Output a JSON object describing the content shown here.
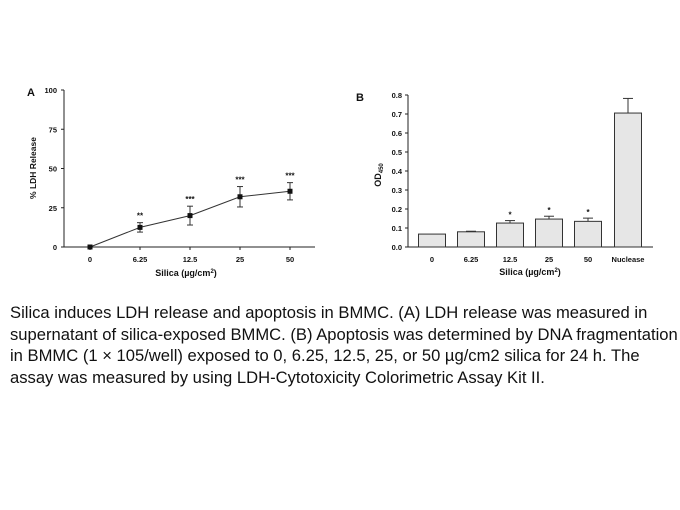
{
  "chart_data": [
    {
      "panel": "A",
      "type": "line",
      "xlabel": "Silica (µg/cm²)",
      "ylabel": "% LDH Release",
      "categories": [
        "0",
        "6.25",
        "12.5",
        "25",
        "50"
      ],
      "values": [
        0,
        12.5,
        20,
        32,
        35.5
      ],
      "errors": [
        0,
        3,
        6,
        6.5,
        5.5
      ],
      "annotations": [
        "",
        "**",
        "***",
        "***",
        "***"
      ],
      "yticks": [
        "0",
        "25",
        "50",
        "75",
        "100"
      ],
      "ylim": [
        0,
        100
      ],
      "grid": false
    },
    {
      "panel": "B",
      "type": "bar",
      "xlabel": "Silica (µg/cm²)",
      "ylabel": "OD450",
      "categories": [
        "0",
        "6.25",
        "12.5",
        "25",
        "50",
        "Nuclease"
      ],
      "values": [
        0.068,
        0.08,
        0.126,
        0.147,
        0.135,
        0.705
      ],
      "errors": [
        0,
        0.003,
        0.013,
        0.015,
        0.017,
        0.077
      ],
      "annotations": [
        "",
        "",
        "*",
        "*",
        "*",
        ""
      ],
      "yticks": [
        "0.0",
        "0.1",
        "0.2",
        "0.3",
        "0.4",
        "0.5",
        "0.6",
        "0.7",
        "0.8"
      ],
      "ylim": [
        0,
        0.8
      ],
      "bar_color": "#e6e6e6",
      "grid": false
    }
  ],
  "caption": "Silica induces LDH release and apoptosis in BMMC. (A) LDH release was measured in supernatant of silica-exposed BMMC. (B) Apoptosis was determined by DNA fragmentation in BMMC (1 × 105/well) exposed to 0, 6.25, 12.5, 25, or 50 µg/cm2 silica for 24 h. The assay was measured by using LDH-Cytotoxicity Colorimetric Assay Kit II."
}
